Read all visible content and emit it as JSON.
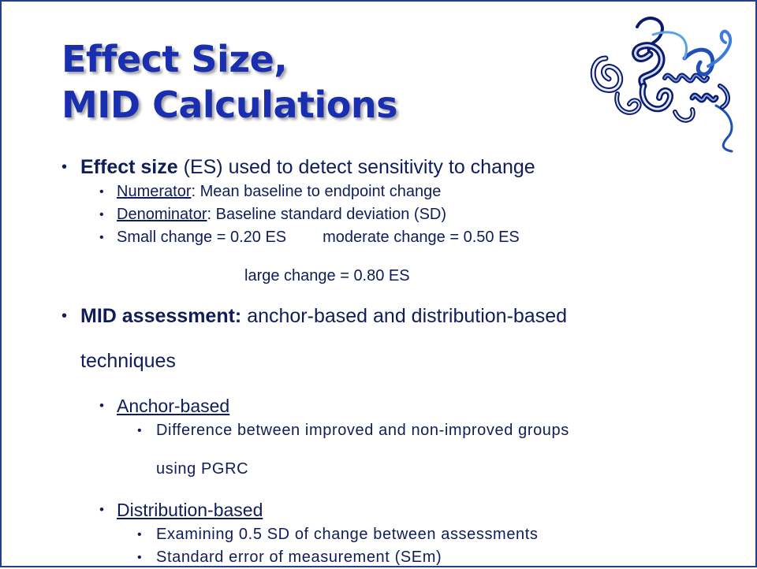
{
  "title": {
    "line1": "Effect Size,",
    "line2": "MID Calculations"
  },
  "graphic": {
    "icon": "protein-ribbon-structure",
    "colors": [
      "#0b1a6e",
      "#1f4fb8",
      "#3b7be0",
      "#5aa3e8"
    ]
  },
  "bullets": {
    "effect_size": {
      "lead": "Effect size",
      "rest": " (ES) used to detect sensitivity to change",
      "numerator": {
        "label": "Numerator",
        "text": ": Mean baseline to endpoint change"
      },
      "denominator": {
        "label": "Denominator",
        "text": ": Baseline standard deviation (SD)"
      },
      "small": "Small change = 0.20 ES",
      "moderate": "moderate change = 0.50 ES",
      "large": "large change = 0.80 ES"
    },
    "mid": {
      "lead": "MID assessment:",
      "rest": " anchor-based and distribution-based",
      "rest2": "techniques",
      "anchor": {
        "label": "Anchor-based",
        "item1_line1": "Difference between improved and non-improved groups",
        "item1_line2": "using PGRC"
      },
      "distribution": {
        "label": "Distribution-based",
        "item1": "Examining 0.5 SD of change between assessments",
        "item2": "Standard error of measurement  (SEm)"
      }
    }
  }
}
